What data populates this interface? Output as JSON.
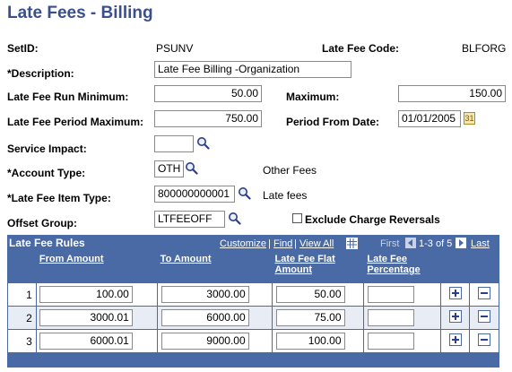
{
  "page": {
    "title": "Late Fees - Billing"
  },
  "form": {
    "setid_label": "SetID:",
    "setid_value": "PSUNV",
    "latefee_code_label": "Late Fee Code:",
    "latefee_code_value": "BLFORG",
    "description_label": "*Description:",
    "description_value": "Late Fee Billing -Organization",
    "run_min_label": "Late Fee Run Minimum:",
    "run_min_value": "50.00",
    "maximum_label": "Maximum:",
    "maximum_value": "150.00",
    "period_max_label": "Late Fee Period Maximum:",
    "period_max_value": "750.00",
    "period_from_label": "Period From Date:",
    "period_from_value": "01/01/2005",
    "service_impact_label": "Service Impact:",
    "service_impact_value": "",
    "account_type_label": "*Account Type:",
    "account_type_value": "OTH",
    "account_type_desc": "Other Fees",
    "item_type_label": "*Late Fee Item Type:",
    "item_type_value": "800000000001",
    "item_type_desc": "Late fees",
    "offset_group_label": "Offset Group:",
    "offset_group_value": "LTFEEOFF",
    "exclude_label": "Exclude Charge Reversals"
  },
  "grid": {
    "title": "Late Fee Rules",
    "customize": "Customize",
    "find": "Find",
    "view_all": "View All",
    "first": "First",
    "range": "1-3 of 5",
    "last": "Last",
    "columns": [
      "From Amount",
      "To Amount",
      "Late Fee Flat Amount",
      "Late Fee Percentage"
    ],
    "rows": [
      {
        "num": "1",
        "from": "100.00",
        "to": "3000.00",
        "flat": "50.00",
        "pct": ""
      },
      {
        "num": "2",
        "from": "3000.01",
        "to": "6000.00",
        "flat": "75.00",
        "pct": ""
      },
      {
        "num": "3",
        "from": "6000.01",
        "to": "9000.00",
        "flat": "100.00",
        "pct": ""
      }
    ]
  },
  "icons": {
    "lookup": "magnifier-icon",
    "calendar": "calendar-icon",
    "add": "plus-icon",
    "delete": "minus-icon"
  }
}
